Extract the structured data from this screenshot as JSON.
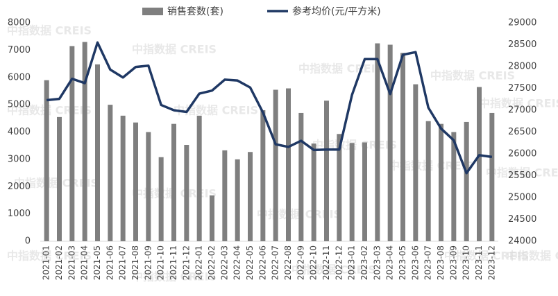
{
  "chart_data": {
    "type": "bar-line",
    "watermark": "中指数据 CREIS",
    "categories": [
      "2021-01",
      "2021-02",
      "2021-03",
      "2021-04",
      "2021-05",
      "2021-06",
      "2021-07",
      "2021-08",
      "2021-09",
      "2021-10",
      "2021-11",
      "2021-12",
      "2022-01",
      "2022-02",
      "2022-03",
      "2022-04",
      "2022-05",
      "2022-06",
      "2022-07",
      "2022-08",
      "2022-09",
      "2022-10",
      "2022-11",
      "2022-12",
      "2023-01",
      "2023-02",
      "2023-03",
      "2023-04",
      "2023-05",
      "2023-06",
      "2023-07",
      "2023-08",
      "2023-09",
      "2023-10",
      "2023-11",
      "2023-12"
    ],
    "series": [
      {
        "name": "销售套数(套)",
        "type": "bar",
        "color": "#7f7f7f",
        "values": [
          5900,
          4550,
          7150,
          7300,
          6480,
          5000,
          4600,
          4350,
          4000,
          3080,
          4300,
          3530,
          4600,
          1680,
          3330,
          3000,
          3270,
          4800,
          5550,
          5600,
          4700,
          3580,
          5150,
          3930,
          3600,
          3620,
          7250,
          7200,
          6900,
          5750,
          4400,
          4300,
          4000,
          4370,
          5650,
          4700
        ]
      },
      {
        "name": "参考均价(元/平方米)",
        "type": "line",
        "axis": "y2",
        "color": "#1f3864",
        "values": [
          27230,
          27260,
          27720,
          27620,
          28550,
          27930,
          27750,
          27990,
          28020,
          27120,
          27000,
          26960,
          27380,
          27450,
          27700,
          27680,
          27520,
          26950,
          26220,
          26160,
          26300,
          26090,
          26100,
          26100,
          27350,
          28170,
          28170,
          27370,
          28270,
          28330,
          27060,
          26580,
          26310,
          25560,
          25970,
          25930
        ]
      }
    ],
    "ylim": [
      0,
      8000
    ],
    "yticks": [
      0,
      1000,
      2000,
      3000,
      4000,
      5000,
      6000,
      7000,
      8000
    ],
    "y2lim": [
      24000,
      29000
    ],
    "y2ticks": [
      24000,
      24500,
      25000,
      25500,
      26000,
      26500,
      27000,
      27500,
      28000,
      28500,
      29000
    ],
    "legend": "top"
  }
}
